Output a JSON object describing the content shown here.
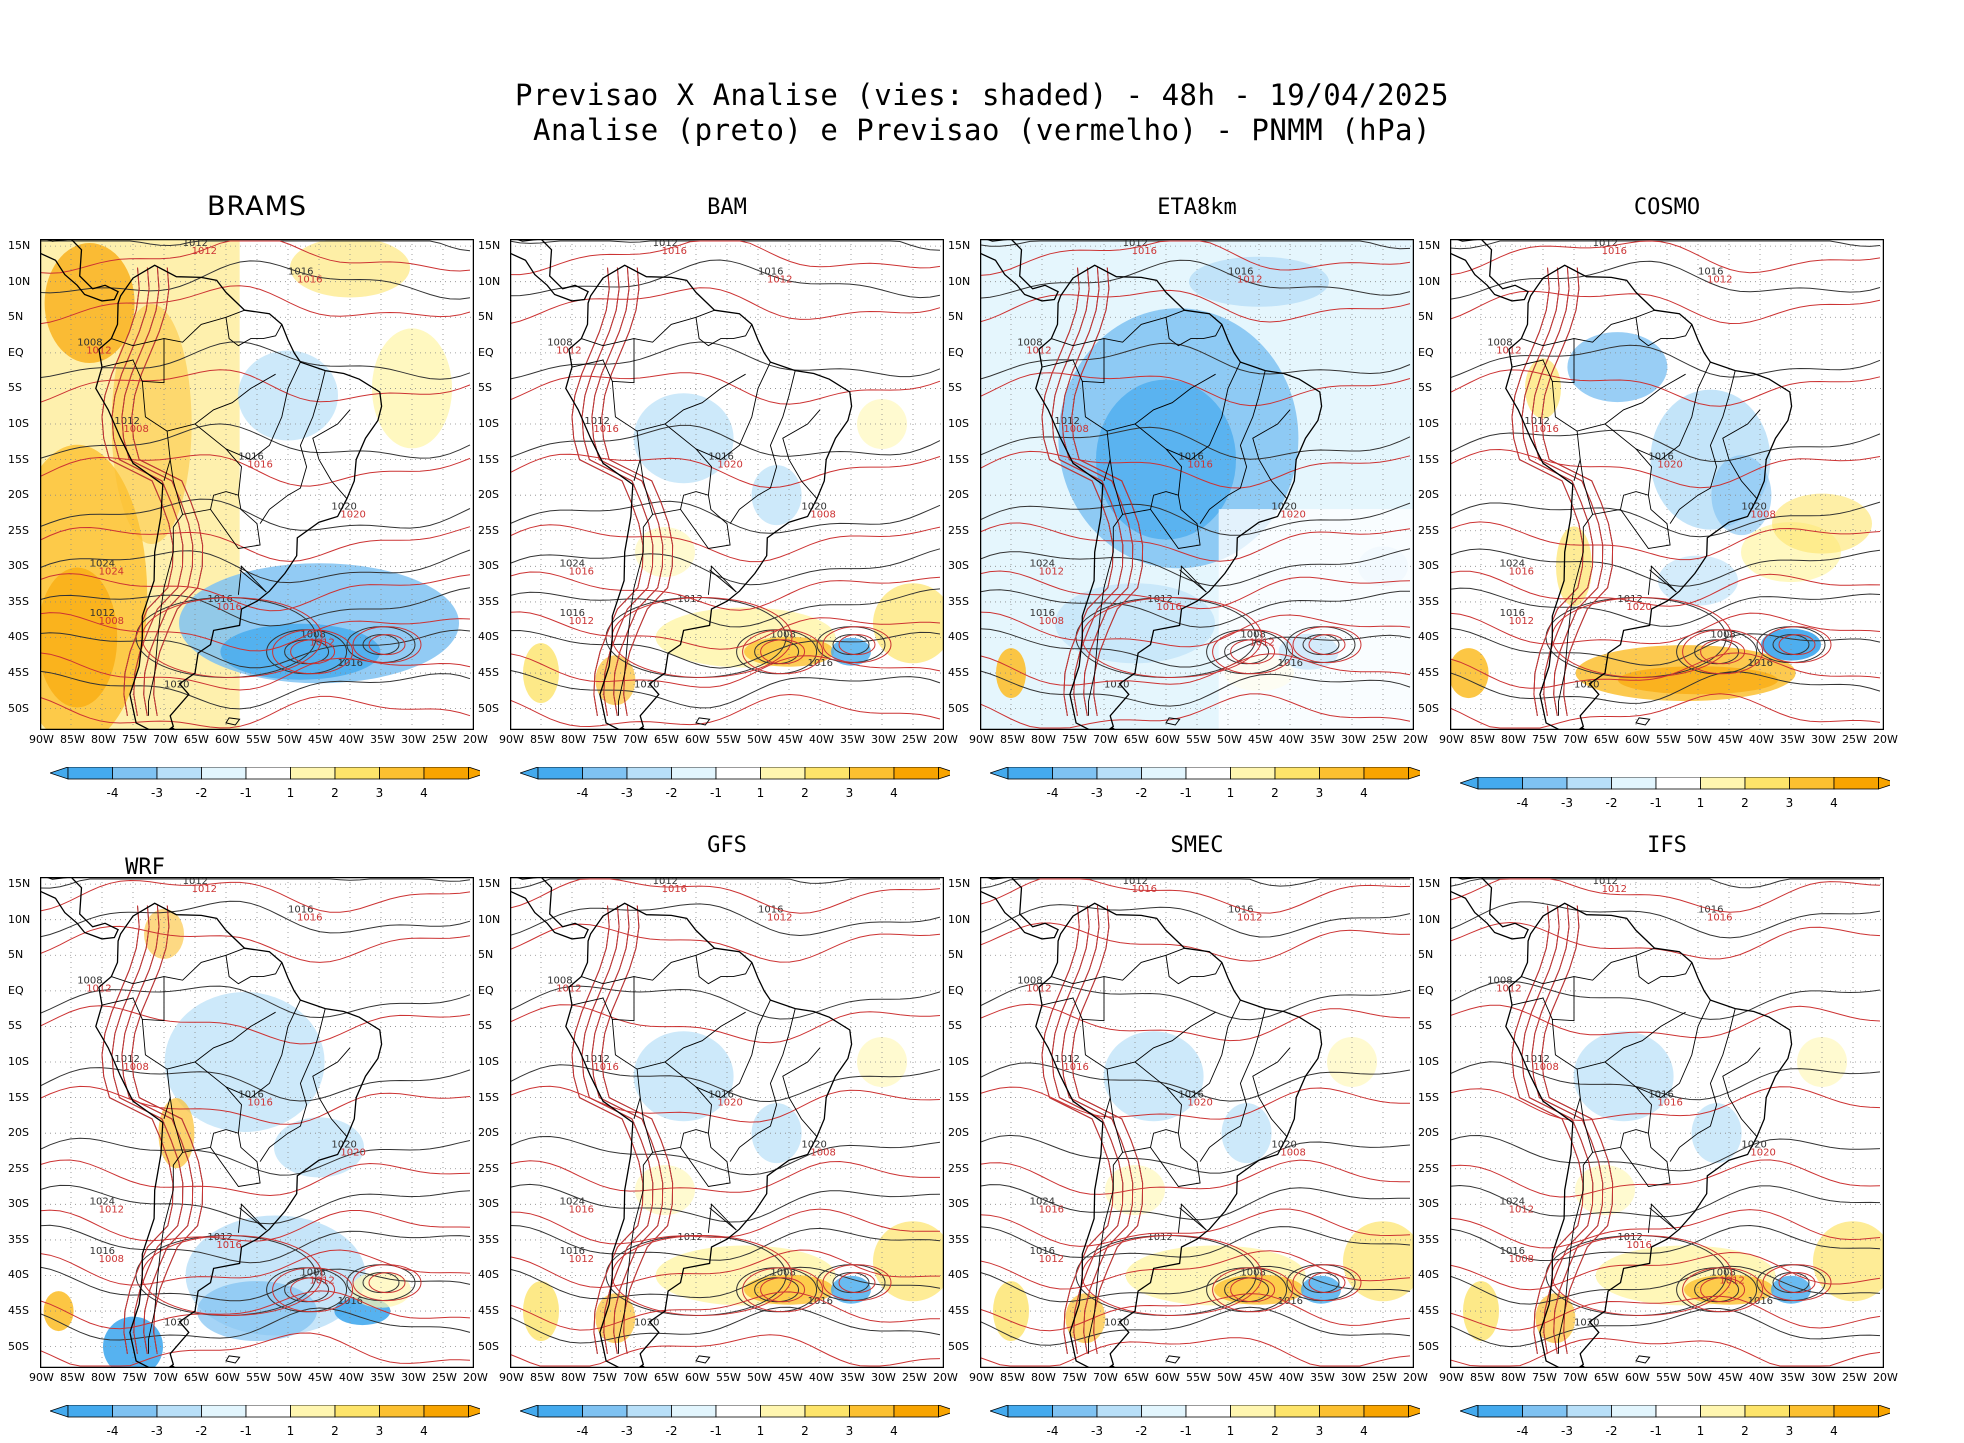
{
  "header": {
    "title_line1": "Previsao X Analise (vies: shaded) - 48h - 19/04/2025",
    "title_line2": "Analise (preto) e Previsao (vermelho) - PNMM (hPa)"
  },
  "lat_labels": [
    "15N",
    "10N",
    "5N",
    "EQ",
    "5S",
    "10S",
    "15S",
    "20S",
    "25S",
    "30S",
    "35S",
    "40S",
    "45S",
    "50S"
  ],
  "lon_labels": [
    "90W",
    "85W",
    "80W",
    "75W",
    "70W",
    "65W",
    "60W",
    "55W",
    "50W",
    "45W",
    "40W",
    "35W",
    "30W",
    "25W",
    "20W"
  ],
  "colorbar": {
    "ticks": [
      "-4",
      "-3",
      "-2",
      "-1",
      "1",
      "2",
      "3",
      "4"
    ],
    "colors": [
      "#44aaee",
      "#7fc2f2",
      "#b8dff8",
      "#e2f5fd",
      "#ffffff",
      "#fff6b0",
      "#fde46a",
      "#fcc030",
      "#f8a400"
    ]
  },
  "panels": [
    {
      "name": "BRAMS",
      "bias": "warm",
      "labels": {
        "black": [
          "1012",
          "1016",
          "1008",
          "1012",
          "1016",
          "1020",
          "1024",
          "1012",
          "1016",
          "1008",
          "1016",
          "1020"
        ],
        "red": [
          "1012",
          "1016",
          "1012",
          "1008",
          "1016",
          "1020",
          "1024",
          "1008",
          "1016",
          "1012"
        ]
      }
    },
    {
      "name": "BAM",
      "bias": "neutral",
      "labels": {
        "black": [
          "1012",
          "1016",
          "1008",
          "1012",
          "1016",
          "1020",
          "1024",
          "1016",
          "1012",
          "1008",
          "1016",
          "1020"
        ],
        "red": [
          "1016",
          "1012",
          "1012",
          "1016",
          "1020",
          "1008",
          "1016",
          "1012"
        ]
      }
    },
    {
      "name": "ETA8km",
      "bias": "cold",
      "labels": {
        "black": [
          "1012",
          "1016",
          "1008",
          "1012",
          "1016",
          "1020",
          "1024",
          "1016",
          "1012",
          "1008",
          "1016",
          "1020"
        ],
        "red": [
          "1016",
          "1012",
          "1012",
          "1008",
          "1016",
          "1020",
          "1012",
          "1008",
          "1016",
          "1012"
        ]
      }
    },
    {
      "name": "COSMO",
      "bias": "mixed",
      "labels": {
        "black": [
          "1012",
          "1016",
          "1008",
          "1012",
          "1016",
          "1020",
          "1024",
          "1016",
          "1012",
          "1008",
          "1016",
          "1020"
        ],
        "red": [
          "1016",
          "1012",
          "1012",
          "1016",
          "1020",
          "1008",
          "1016",
          "1012",
          "1020"
        ]
      }
    },
    {
      "name": "WRF",
      "bias": "cool",
      "labels": {
        "black": [
          "1012",
          "1016",
          "1008",
          "1012",
          "1016",
          "1020",
          "1024",
          "1016",
          "1012",
          "1008",
          "1016",
          "1020"
        ],
        "red": [
          "1012",
          "1016",
          "1012",
          "1008",
          "1016",
          "1020",
          "1012",
          "1008",
          "1016",
          "1012"
        ]
      }
    },
    {
      "name": "GFS",
      "bias": "neutral",
      "labels": {
        "black": [
          "1012",
          "1016",
          "1008",
          "1012",
          "1016",
          "1020",
          "1024",
          "1016",
          "1012",
          "1008",
          "1016",
          "1020"
        ],
        "red": [
          "1016",
          "1012",
          "1012",
          "1016",
          "1020",
          "1008",
          "1016",
          "1012"
        ]
      }
    },
    {
      "name": "SMEC",
      "bias": "neutral",
      "labels": {
        "black": [
          "1012",
          "1016",
          "1008",
          "1012",
          "1016",
          "1020",
          "1024",
          "1016",
          "1012",
          "1008",
          "1016",
          "1020"
        ],
        "red": [
          "1016",
          "1012",
          "1012",
          "1016",
          "1020",
          "1008",
          "1016",
          "1012"
        ]
      }
    },
    {
      "name": "IFS",
      "bias": "neutral",
      "labels": {
        "black": [
          "1012",
          "1016",
          "1008",
          "1012",
          "1016",
          "1020",
          "1024",
          "1016",
          "1012",
          "1008",
          "1016",
          "1020"
        ],
        "red": [
          "1012",
          "1016",
          "1012",
          "1008",
          "1016",
          "1020",
          "1012",
          "1008",
          "1016",
          "1012"
        ]
      }
    }
  ]
}
